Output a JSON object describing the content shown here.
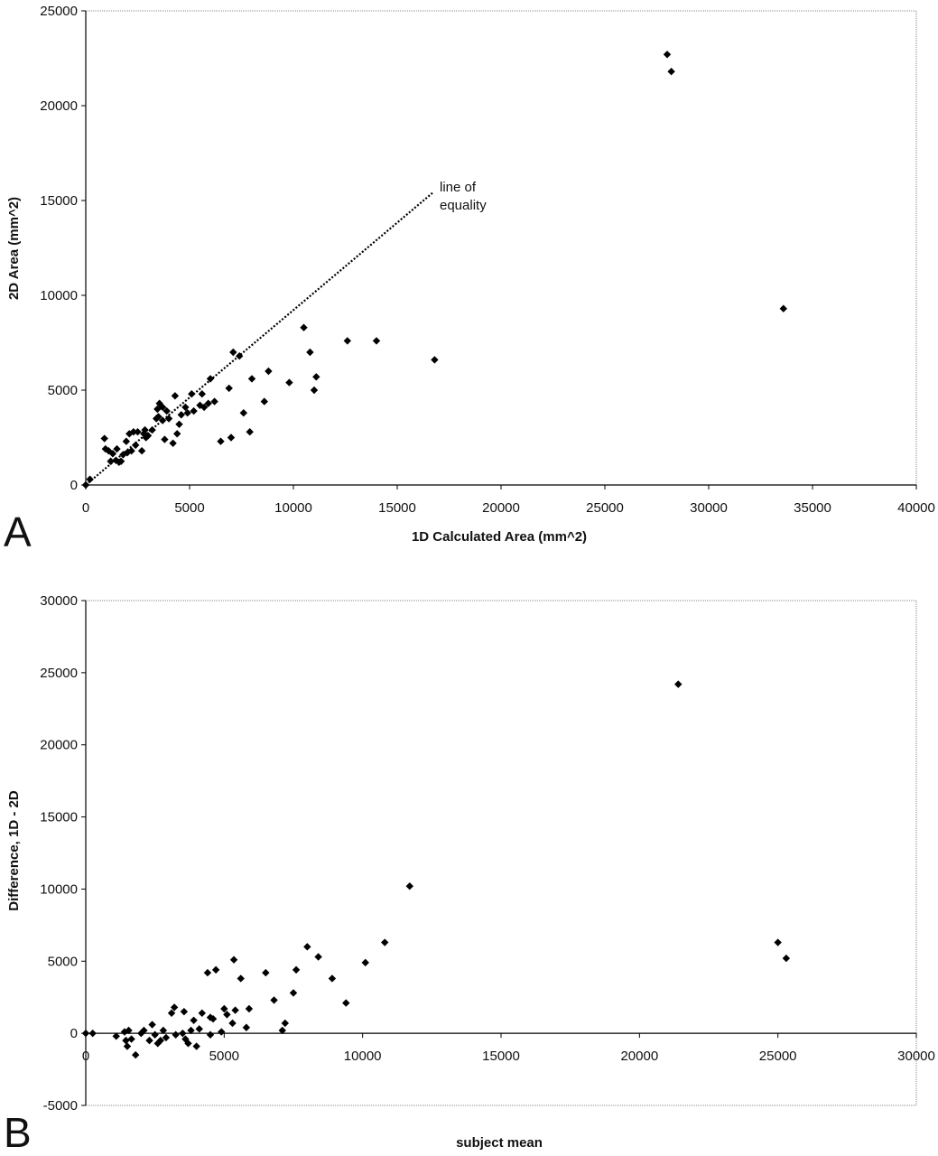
{
  "panels": [
    {
      "letter": "A"
    },
    {
      "letter": "B"
    }
  ],
  "chart_data": [
    {
      "type": "scatter",
      "title": "",
      "xlabel": "1D Calculated Area (mm^2)",
      "ylabel": "2D Area (mm^2)",
      "xlim": [
        0,
        40000
      ],
      "ylim": [
        0,
        25000
      ],
      "x_ticks": [
        "0",
        "5000",
        "10000",
        "15000",
        "20000",
        "25000",
        "30000",
        "35000",
        "40000"
      ],
      "y_ticks": [
        "0",
        "5000",
        "10000",
        "15000",
        "20000",
        "25000"
      ],
      "grid": false,
      "annotation": {
        "lines": [
          "line of",
          "equality"
        ],
        "x": 17000,
        "y": 15700
      },
      "reference_line": {
        "name": "line of equality",
        "x": [
          0,
          16700
        ],
        "y": [
          0,
          15400
        ]
      },
      "series": [
        {
          "values": [
            [
              0,
              0
            ],
            [
              200,
              300
            ],
            [
              900,
              2450
            ],
            [
              950,
              1900
            ],
            [
              1100,
              1800
            ],
            [
              1200,
              1250
            ],
            [
              1300,
              1650
            ],
            [
              1450,
              1300
            ],
            [
              1500,
              1900
            ],
            [
              1600,
              1200
            ],
            [
              1700,
              1250
            ],
            [
              1800,
              1600
            ],
            [
              1950,
              2300
            ],
            [
              2000,
              1700
            ],
            [
              2100,
              2700
            ],
            [
              2200,
              1800
            ],
            [
              2300,
              2800
            ],
            [
              2400,
              2100
            ],
            [
              2500,
              2800
            ],
            [
              2700,
              1800
            ],
            [
              2800,
              2700
            ],
            [
              2850,
              2900
            ],
            [
              2900,
              2500
            ],
            [
              3000,
              2600
            ],
            [
              3200,
              2900
            ],
            [
              3400,
              3500
            ],
            [
              3450,
              4000
            ],
            [
              3500,
              3600
            ],
            [
              3550,
              4300
            ],
            [
              3700,
              3400
            ],
            [
              3700,
              4100
            ],
            [
              3800,
              2400
            ],
            [
              3900,
              3900
            ],
            [
              4000,
              3500
            ],
            [
              4200,
              2200
            ],
            [
              4300,
              4700
            ],
            [
              4400,
              2700
            ],
            [
              4500,
              3200
            ],
            [
              4600,
              3700
            ],
            [
              4800,
              4100
            ],
            [
              4900,
              3800
            ],
            [
              5100,
              4800
            ],
            [
              5200,
              3900
            ],
            [
              5500,
              4200
            ],
            [
              5600,
              4800
            ],
            [
              5700,
              4100
            ],
            [
              5900,
              4300
            ],
            [
              6000,
              5600
            ],
            [
              6200,
              4400
            ],
            [
              6500,
              2300
            ],
            [
              6900,
              5100
            ],
            [
              7000,
              2500
            ],
            [
              7100,
              7000
            ],
            [
              7400,
              6800
            ],
            [
              7600,
              3800
            ],
            [
              7900,
              2800
            ],
            [
              8000,
              5600
            ],
            [
              8600,
              4400
            ],
            [
              8800,
              6000
            ],
            [
              9800,
              5400
            ],
            [
              10500,
              8300
            ],
            [
              10800,
              7000
            ],
            [
              11000,
              5000
            ],
            [
              11100,
              5700
            ],
            [
              12600,
              7600
            ],
            [
              14000,
              7600
            ],
            [
              16800,
              6600
            ],
            [
              28000,
              22700
            ],
            [
              28200,
              21800
            ],
            [
              33600,
              9300
            ]
          ]
        }
      ]
    },
    {
      "type": "scatter",
      "title": "",
      "xlabel": "subject mean",
      "ylabel": "Difference, 1D - 2D",
      "xlim": [
        0,
        30000
      ],
      "ylim": [
        -5000,
        30000
      ],
      "x_ticks": [
        "0",
        "5000",
        "10000",
        "15000",
        "20000",
        "25000",
        "30000"
      ],
      "y_ticks": [
        "-5000",
        "0",
        "5000",
        "10000",
        "15000",
        "20000",
        "25000",
        "30000"
      ],
      "grid": false,
      "series": [
        {
          "values": [
            [
              0,
              0
            ],
            [
              250,
              0
            ],
            [
              1100,
              -200
            ],
            [
              1400,
              100
            ],
            [
              1450,
              -500
            ],
            [
              1500,
              -900
            ],
            [
              1550,
              200
            ],
            [
              1650,
              -400
            ],
            [
              1800,
              -1500
            ],
            [
              2000,
              0
            ],
            [
              2100,
              200
            ],
            [
              2300,
              -500
            ],
            [
              2400,
              600
            ],
            [
              2500,
              -100
            ],
            [
              2600,
              -700
            ],
            [
              2700,
              -500
            ],
            [
              2800,
              200
            ],
            [
              2900,
              -300
            ],
            [
              3100,
              1400
            ],
            [
              3200,
              1800
            ],
            [
              3250,
              -100
            ],
            [
              3500,
              0
            ],
            [
              3550,
              1500
            ],
            [
              3600,
              -400
            ],
            [
              3700,
              -700
            ],
            [
              3800,
              200
            ],
            [
              3900,
              900
            ],
            [
              4000,
              -900
            ],
            [
              4100,
              300
            ],
            [
              4200,
              1400
            ],
            [
              4400,
              4200
            ],
            [
              4500,
              1100
            ],
            [
              4500,
              -100
            ],
            [
              4600,
              1000
            ],
            [
              4700,
              4400
            ],
            [
              4900,
              100
            ],
            [
              5000,
              1700
            ],
            [
              5100,
              1300
            ],
            [
              5300,
              700
            ],
            [
              5350,
              5100
            ],
            [
              5400,
              1600
            ],
            [
              5600,
              3800
            ],
            [
              5800,
              400
            ],
            [
              5900,
              1700
            ],
            [
              6500,
              4200
            ],
            [
              6800,
              2300
            ],
            [
              7100,
              200
            ],
            [
              7200,
              700
            ],
            [
              7500,
              2800
            ],
            [
              7600,
              4400
            ],
            [
              8000,
              6000
            ],
            [
              8400,
              5300
            ],
            [
              8900,
              3800
            ],
            [
              9400,
              2100
            ],
            [
              10100,
              4900
            ],
            [
              10800,
              6300
            ],
            [
              11700,
              10200
            ],
            [
              21400,
              24200
            ],
            [
              25000,
              6300
            ],
            [
              25300,
              5200
            ]
          ]
        }
      ]
    }
  ]
}
